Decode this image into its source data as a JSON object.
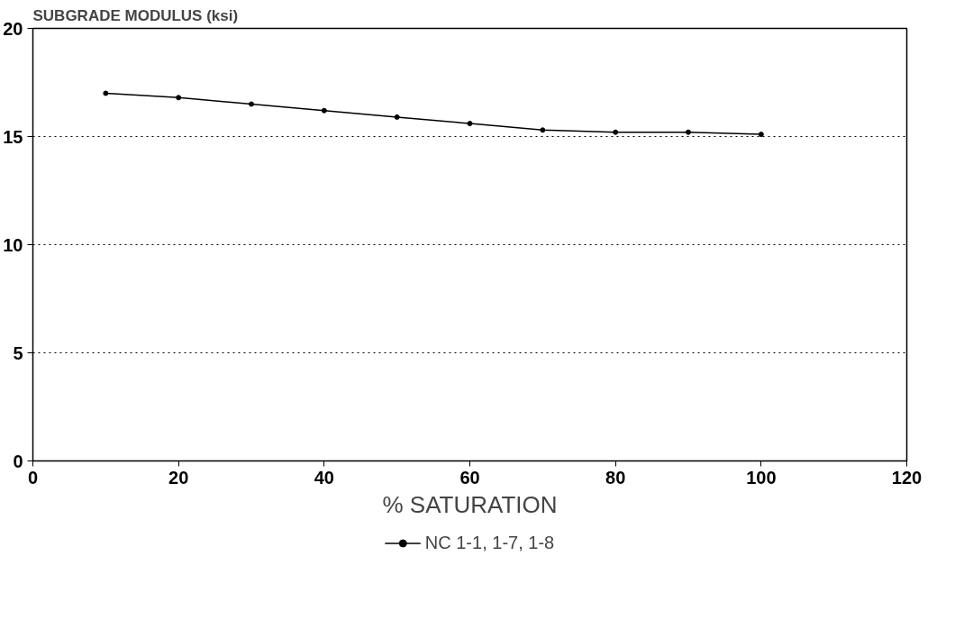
{
  "chart_data": {
    "type": "line",
    "xlabel": "% SATURATION",
    "ylabel": "SUBGRADE MODULUS (ksi)",
    "x": [
      10,
      20,
      30,
      40,
      50,
      60,
      70,
      80,
      90,
      100
    ],
    "series": [
      {
        "name": "NC 1-1, 1-7, 1-8",
        "color": "#000000",
        "values": [
          17.0,
          16.8,
          16.5,
          16.2,
          15.9,
          15.6,
          15.3,
          15.2,
          15.2,
          15.1
        ]
      }
    ],
    "xlim": [
      0,
      120
    ],
    "xticks": [
      0,
      20,
      40,
      60,
      80,
      100,
      120
    ],
    "ylim": [
      0,
      20
    ],
    "yticks": [
      0,
      5,
      10,
      15,
      20
    ],
    "grid": "y",
    "legend": "bottom",
    "marker": "circle",
    "line_style": "solid"
  }
}
